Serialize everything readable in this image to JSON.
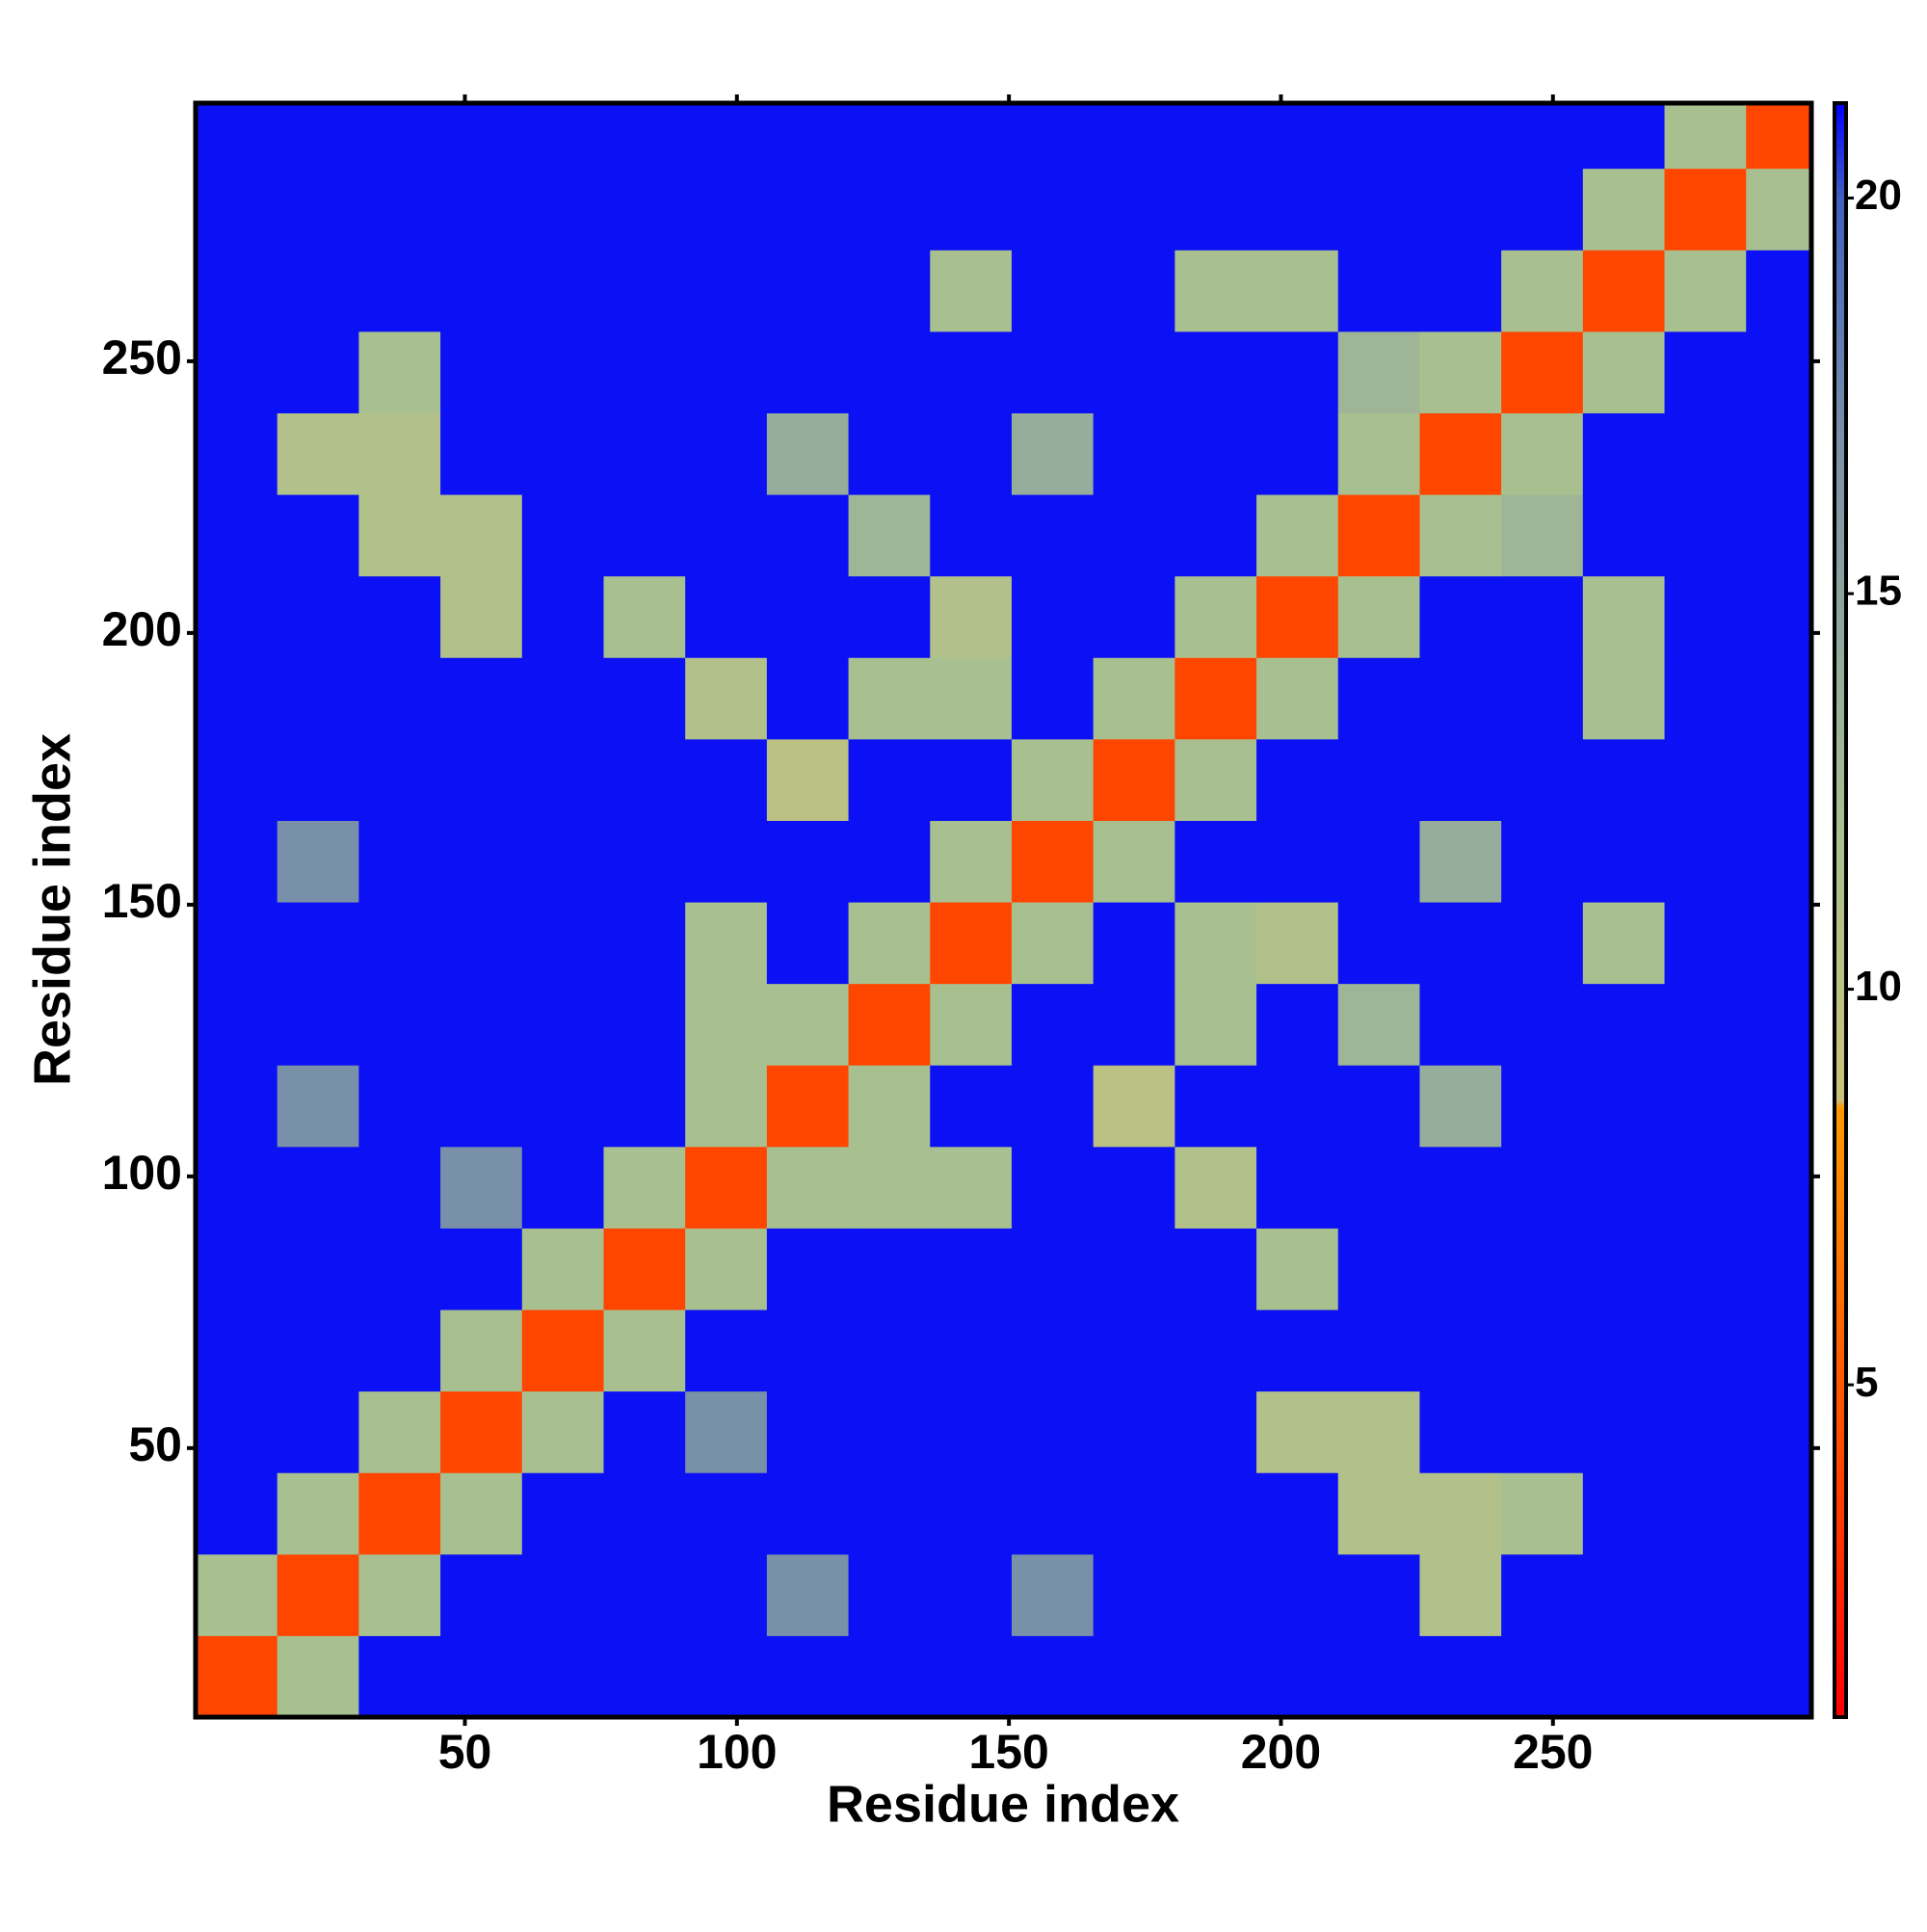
{
  "chart_data": {
    "type": "heatmap",
    "xlabel": "Residue index",
    "ylabel": "Residue index",
    "xlim": [
      0.5,
      297.5
    ],
    "ylim": [
      0.5,
      297.5
    ],
    "xticks": [
      50,
      100,
      150,
      200,
      250
    ],
    "yticks": [
      50,
      100,
      150,
      200,
      250
    ],
    "x_edges": [
      0.5,
      15.5,
      30.5,
      45.5,
      60.5,
      75.5,
      90.5,
      105.5,
      120.5,
      135.5,
      150.5,
      165.5,
      180.5,
      195.5,
      210.5,
      225.5,
      240.5,
      255.5,
      270.5,
      285.5,
      297.5
    ],
    "y_edges": [
      0.5,
      15.5,
      30.5,
      45.5,
      60.5,
      75.5,
      90.5,
      105.5,
      120.5,
      135.5,
      150.5,
      165.5,
      180.5,
      195.5,
      210.5,
      225.5,
      240.5,
      255.5,
      270.5,
      285.5,
      297.5
    ],
    "values": [
      [
        4,
        12,
        21,
        21,
        21,
        21,
        21,
        21,
        21,
        21,
        21,
        21,
        21,
        21,
        21,
        21,
        21,
        21,
        21,
        21
      ],
      [
        12,
        4,
        12,
        21,
        21,
        21,
        21,
        17,
        21,
        21,
        17,
        21,
        21,
        21,
        21,
        11,
        21,
        21,
        21,
        21
      ],
      [
        21,
        12,
        4,
        12,
        21,
        21,
        21,
        21,
        21,
        21,
        21,
        21,
        21,
        21,
        11,
        11,
        12,
        21,
        21,
        21
      ],
      [
        21,
        21,
        12,
        4,
        12,
        21,
        17,
        21,
        21,
        21,
        21,
        21,
        21,
        11,
        11,
        21,
        21,
        21,
        21,
        21
      ],
      [
        21,
        21,
        21,
        12,
        4,
        12,
        21,
        21,
        21,
        21,
        21,
        21,
        21,
        21,
        21,
        21,
        21,
        21,
        21,
        21
      ],
      [
        21,
        21,
        21,
        21,
        12,
        4,
        12,
        21,
        21,
        21,
        21,
        21,
        21,
        12,
        21,
        21,
        21,
        21,
        21,
        21
      ],
      [
        21,
        21,
        21,
        17,
        21,
        12,
        4,
        12,
        12,
        12,
        21,
        21,
        11,
        21,
        21,
        21,
        21,
        21,
        21,
        21
      ],
      [
        21,
        17,
        21,
        21,
        21,
        21,
        12,
        4,
        12,
        21,
        21,
        10,
        21,
        21,
        21,
        14,
        21,
        21,
        21,
        21
      ],
      [
        21,
        21,
        21,
        21,
        21,
        21,
        12,
        12,
        4,
        12,
        21,
        21,
        12,
        21,
        13,
        21,
        21,
        21,
        21,
        21
      ],
      [
        21,
        21,
        21,
        21,
        21,
        21,
        12,
        21,
        12,
        4,
        12,
        21,
        12,
        11,
        21,
        21,
        21,
        12,
        21,
        21
      ],
      [
        21,
        17,
        21,
        21,
        21,
        21,
        21,
        21,
        21,
        12,
        4,
        12,
        21,
        21,
        21,
        14,
        21,
        21,
        21,
        21
      ],
      [
        21,
        21,
        21,
        21,
        21,
        21,
        21,
        10,
        21,
        21,
        12,
        4,
        12,
        21,
        21,
        21,
        21,
        21,
        21,
        21
      ],
      [
        21,
        21,
        21,
        21,
        21,
        21,
        11,
        21,
        12,
        12,
        21,
        12,
        4,
        12,
        21,
        21,
        21,
        12,
        21,
        21
      ],
      [
        21,
        21,
        21,
        11,
        21,
        12,
        21,
        21,
        21,
        11,
        21,
        21,
        12,
        4,
        12,
        21,
        21,
        12,
        21,
        21
      ],
      [
        21,
        21,
        11,
        11,
        21,
        21,
        21,
        21,
        13,
        21,
        21,
        21,
        21,
        12,
        4,
        12,
        13,
        21,
        21,
        21
      ],
      [
        21,
        11,
        11,
        21,
        21,
        21,
        21,
        14,
        21,
        21,
        14,
        21,
        21,
        21,
        12,
        4,
        12,
        21,
        21,
        21
      ],
      [
        21,
        21,
        12,
        21,
        21,
        21,
        21,
        21,
        21,
        21,
        21,
        21,
        21,
        21,
        13,
        12,
        4,
        12,
        21,
        21
      ],
      [
        21,
        21,
        21,
        21,
        21,
        21,
        21,
        21,
        21,
        12,
        21,
        21,
        12,
        12,
        21,
        21,
        12,
        4,
        12,
        21
      ],
      [
        21,
        21,
        21,
        21,
        21,
        21,
        21,
        21,
        21,
        21,
        21,
        21,
        21,
        21,
        21,
        21,
        21,
        12,
        4,
        12
      ],
      [
        21,
        21,
        21,
        21,
        21,
        21,
        21,
        21,
        21,
        21,
        21,
        21,
        21,
        21,
        21,
        21,
        21,
        21,
        12,
        4
      ]
    ],
    "colorbar": {
      "ylim": [
        0.8,
        21.2
      ],
      "yticks": [
        5,
        10,
        15,
        20
      ],
      "colorscale": [
        [
          0.8,
          "#ff0000"
        ],
        [
          3,
          "#ff3300"
        ],
        [
          8.5,
          "#ff9900"
        ],
        [
          8.6,
          "#c9c27a"
        ],
        [
          12,
          "#a8c090"
        ],
        [
          17,
          "#7890a8"
        ],
        [
          20,
          "#4060c0"
        ],
        [
          21.2,
          "#0000ff"
        ]
      ]
    }
  }
}
